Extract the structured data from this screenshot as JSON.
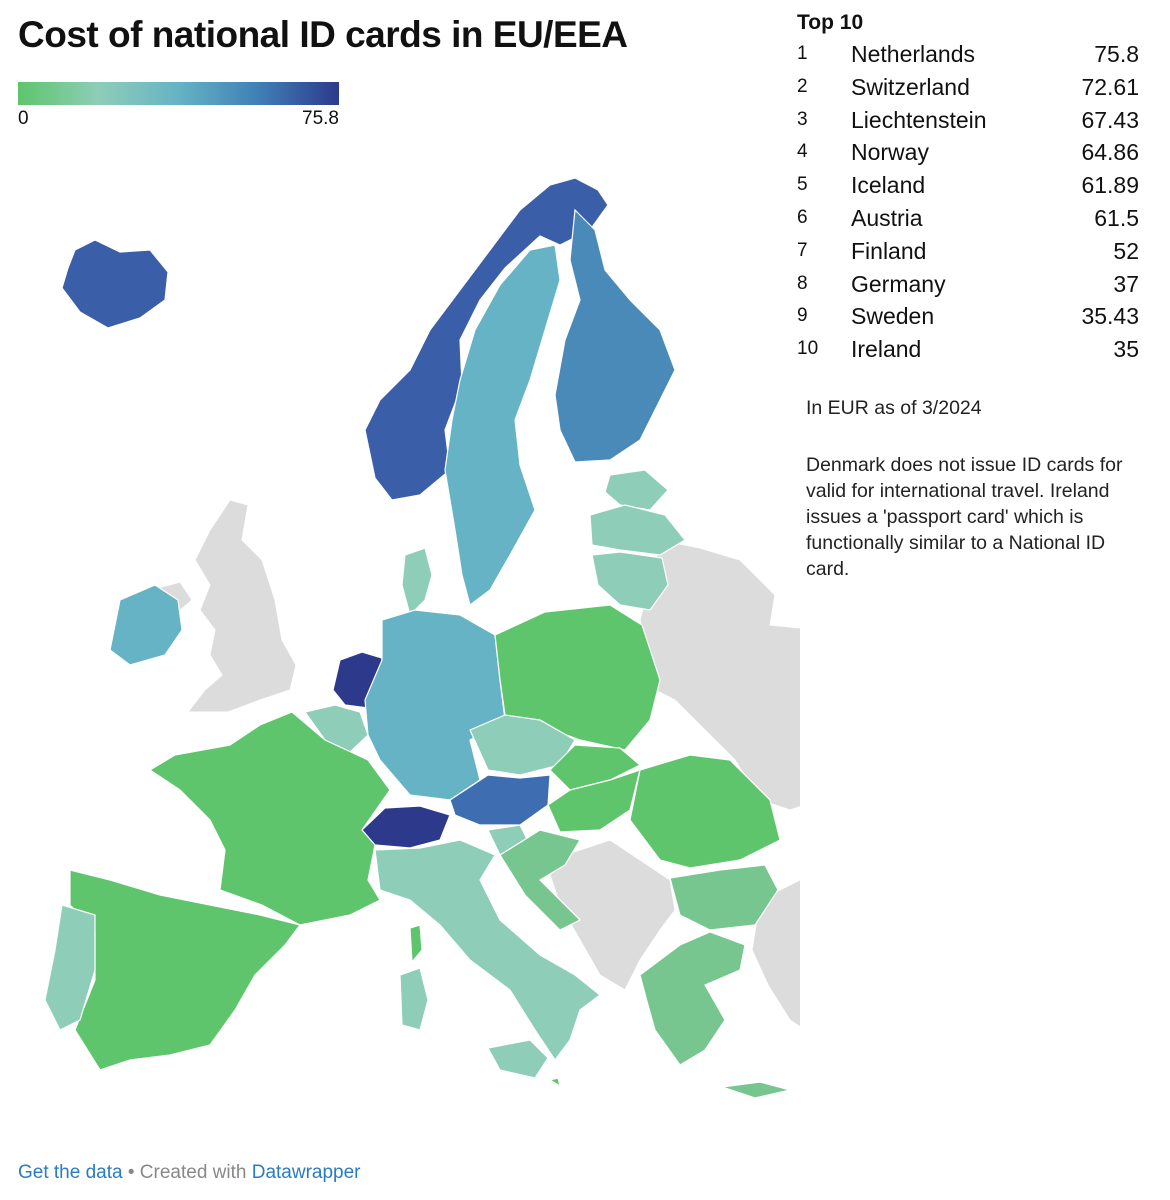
{
  "title": "Cost of national ID cards in EU/EEA",
  "legend": {
    "min_label": "0",
    "max_label": "75.8",
    "gradient_colors": [
      "#5ec56c",
      "#8ecdb8",
      "#66b3c5",
      "#3f7fb6",
      "#2d3a8c"
    ]
  },
  "top10": {
    "heading": "Top 10",
    "rows": [
      {
        "rank": "1",
        "country": "Netherlands",
        "value": "75.8"
      },
      {
        "rank": "2",
        "country": "Switzerland",
        "value": "72.61"
      },
      {
        "rank": "3",
        "country": "Liechtenstein",
        "value": "67.43"
      },
      {
        "rank": "4",
        "country": "Norway",
        "value": "64.86"
      },
      {
        "rank": "5",
        "country": "Iceland",
        "value": "61.89"
      },
      {
        "rank": "6",
        "country": "Austria",
        "value": "61.5"
      },
      {
        "rank": "7",
        "country": "Finland",
        "value": "52"
      },
      {
        "rank": "8",
        "country": "Germany",
        "value": "37"
      },
      {
        "rank": "9",
        "country": "Sweden",
        "value": "35.43"
      },
      {
        "rank": "10",
        "country": "Ireland",
        "value": "35"
      }
    ]
  },
  "notes": {
    "unit": "In EUR as of 3/2024",
    "explanation": "Denmark does not issue ID cards for valid for international travel. Ireland issues a 'passport card' which is functionally similar to a National ID card."
  },
  "footer": {
    "get_data": "Get the data",
    "separator": " • Created with ",
    "tool": "Datawrapper"
  },
  "colors": {
    "no_data": "#dcdcdc",
    "netherlands": "#2d3a8c",
    "switzerland": "#2d3a8c",
    "norway": "#3b5ea8",
    "iceland": "#3b5ea8",
    "austria": "#3f6db2",
    "finland": "#4a8ab8",
    "germany": "#66b3c5",
    "sweden": "#66b3c5",
    "ireland": "#66b3c5",
    "cyprus": "#66b3c5",
    "light_teal": "#8ecdb8",
    "mid_green": "#77c68f",
    "green": "#5ec56c"
  }
}
